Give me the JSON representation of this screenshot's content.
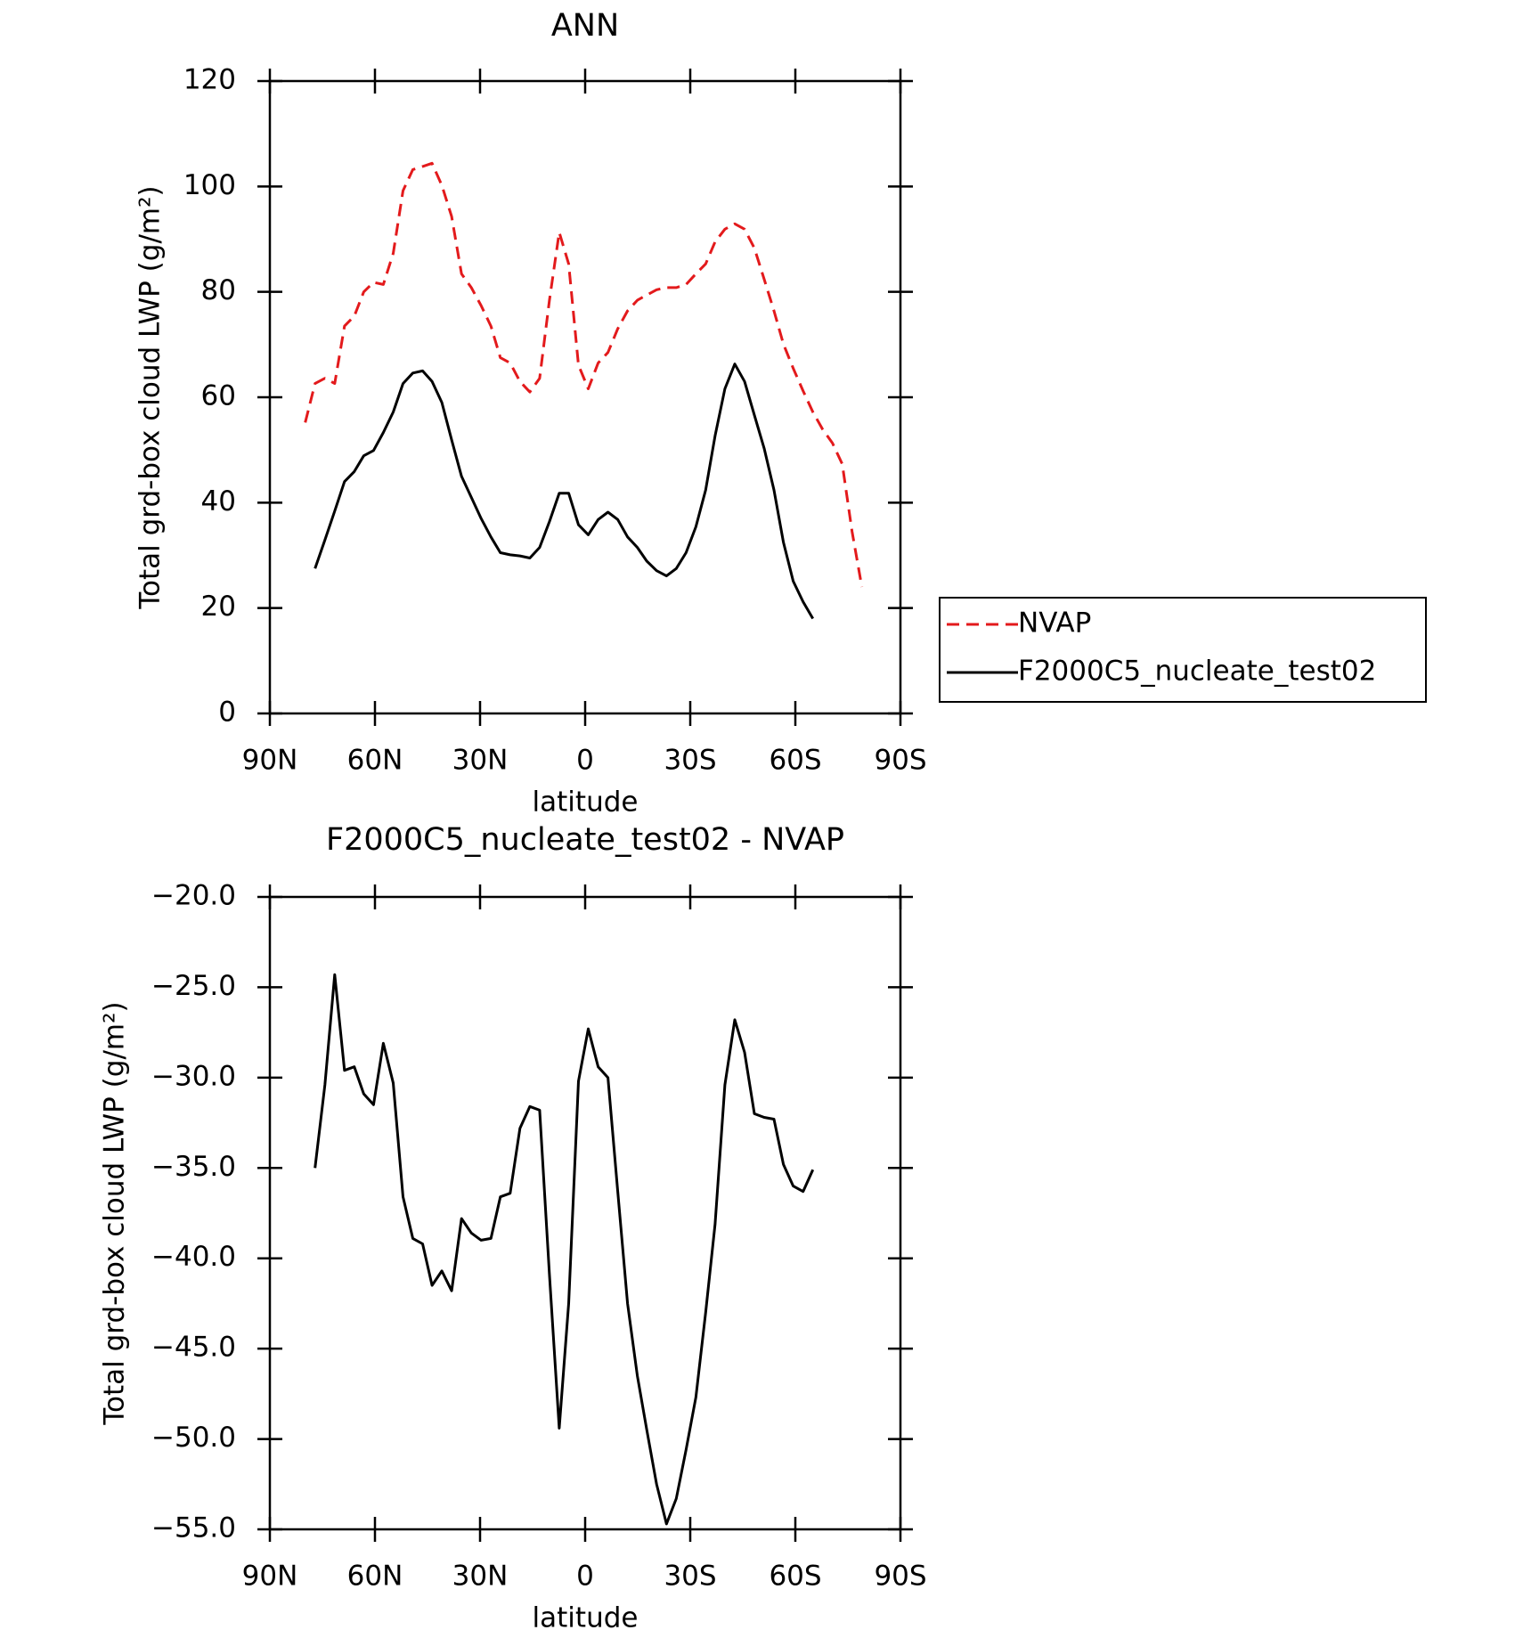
{
  "chart_data": [
    {
      "type": "line",
      "title": "ANN",
      "xlabel": "latitude",
      "ylabel": "Total grd-box cloud LWP (g/m²)",
      "x": [
        79.9,
        77.1,
        74.3,
        71.5,
        68.7,
        65.9,
        63.2,
        60.4,
        57.6,
        54.8,
        52.0,
        49.2,
        46.4,
        43.7,
        40.9,
        38.1,
        35.3,
        32.5,
        29.7,
        26.9,
        24.2,
        21.4,
        18.6,
        15.8,
        13.0,
        10.2,
        7.4,
        4.7,
        1.9,
        -0.9,
        -3.7,
        -6.5,
        -9.3,
        -12.1,
        -14.9,
        -17.6,
        -20.4,
        -23.2,
        -26.0,
        -28.8,
        -31.6,
        -34.4,
        -37.1,
        -39.9,
        -42.7,
        -45.5,
        -48.3,
        -51.1,
        -53.9,
        -56.6,
        -59.4,
        -62.2,
        -65.0,
        -67.8,
        -70.6,
        -73.4,
        -76.2,
        -79.0
      ],
      "series": [
        {
          "name": "NVAP",
          "color": "#e31a1c",
          "dashed": true,
          "values": [
            55.2,
            62.6,
            63.6,
            62.6,
            73.5,
            75.4,
            80,
            81.8,
            81.4,
            87.3,
            99.2,
            103.2,
            103.8,
            104.4,
            100.2,
            94.3,
            83.4,
            80.8,
            77.4,
            73.5,
            67.5,
            66.5,
            63,
            61,
            63.6,
            78.4,
            91.3,
            85.3,
            66.1,
            61.6,
            66.5,
            68.5,
            73,
            76.4,
            78.4,
            79.4,
            80.4,
            80.8,
            80.8,
            81.4,
            83.4,
            85.3,
            89.5,
            91.9,
            92.9,
            91.9,
            88.3,
            82.4,
            76.4,
            70.1,
            65.5,
            61.2,
            57.2,
            53.9,
            51.3,
            47.3,
            34.5,
            24
          ]
        },
        {
          "name": "F2000C5_nucleate_test02",
          "color": "#000000",
          "dashed": false,
          "values": [
            null,
            27.5,
            32.9,
            38.4,
            44,
            45.9,
            48.9,
            49.9,
            53.3,
            57.2,
            62.6,
            64.6,
            65,
            63,
            59,
            51.9,
            45,
            41,
            37,
            33.5,
            30.5,
            30.1,
            29.9,
            29.5,
            31.5,
            36.4,
            41.8,
            41.8,
            35.8,
            33.9,
            36.8,
            38.2,
            36.8,
            33.5,
            31.5,
            28.9,
            27.1,
            26.1,
            27.5,
            30.5,
            35.4,
            42.4,
            52.7,
            61.6,
            66.3,
            63,
            56.6,
            50.3,
            42.4,
            32.5,
            25.1,
            21.2,
            18,
            null,
            null,
            null,
            null,
            null
          ]
        }
      ],
      "xlim": [
        90,
        -90
      ],
      "xticks": [
        {
          "value": 90,
          "label": "90N"
        },
        {
          "value": 60,
          "label": "60N"
        },
        {
          "value": 30,
          "label": "30N"
        },
        0,
        {
          "value": -30,
          "label": "30S"
        },
        {
          "value": -60,
          "label": "60S"
        },
        {
          "value": -90,
          "label": "90S"
        }
      ],
      "ylim": [
        0,
        120
      ],
      "yticks": [
        0,
        20,
        40,
        60,
        80,
        100,
        120
      ],
      "legend": "right"
    },
    {
      "type": "line",
      "title": "F2000C5_nucleate_test02 - NVAP",
      "xlabel": "latitude",
      "ylabel": "Total grd-box cloud LWP (g/m²)",
      "x": [
        77.1,
        74.3,
        71.5,
        68.7,
        65.9,
        63.2,
        60.4,
        57.6,
        54.8,
        52.0,
        49.2,
        46.4,
        43.7,
        40.9,
        38.1,
        35.3,
        32.5,
        29.7,
        26.9,
        24.2,
        21.4,
        18.6,
        15.8,
        13.0,
        10.2,
        7.4,
        4.7,
        1.9,
        -0.9,
        -3.7,
        -6.5,
        -9.3,
        -12.1,
        -14.9,
        -17.6,
        -20.4,
        -23.2,
        -26.0,
        -28.8,
        -31.6,
        -34.4,
        -37.1,
        -39.9,
        -42.7,
        -45.5,
        -48.3,
        -51.1,
        -53.9,
        -56.6,
        -59.4,
        -62.2,
        -65.0
      ],
      "series": [
        {
          "color": "#000000",
          "dashed": false,
          "values": [
            -35.0,
            -30.4,
            -24.3,
            -29.6,
            -29.4,
            -30.9,
            -31.5,
            -28.1,
            -30.3,
            -36.6,
            -38.9,
            -39.2,
            -41.5,
            -40.7,
            -41.8,
            -37.8,
            -38.6,
            -39.0,
            -38.9,
            -36.6,
            -36.4,
            -32.8,
            -31.6,
            -31.8,
            -40.9,
            -49.4,
            -42.5,
            -30.2,
            -27.3,
            -29.4,
            -30.0,
            -36.3,
            -42.5,
            -46.5,
            -49.5,
            -52.5,
            -54.7,
            -53.3,
            -50.6,
            -47.7,
            -43.0,
            -38.1,
            -30.4,
            -26.8,
            -28.6,
            -32.0,
            -32.2,
            -32.3,
            -34.8,
            -36.0,
            -36.3,
            -35.1
          ]
        }
      ],
      "xlim": [
        90,
        -90
      ],
      "xticks": [
        {
          "value": 90,
          "label": "90N"
        },
        {
          "value": 60,
          "label": "60N"
        },
        {
          "value": 30,
          "label": "30N"
        },
        0,
        {
          "value": -30,
          "label": "30S"
        },
        {
          "value": -60,
          "label": "60S"
        },
        {
          "value": -90,
          "label": "90S"
        }
      ],
      "ylim": [
        -55,
        -20
      ],
      "yticks": [
        {
          "value": -55,
          "label": "−55.0"
        },
        {
          "value": -50,
          "label": "−50.0"
        },
        {
          "value": -45,
          "label": "−45.0"
        },
        {
          "value": -40,
          "label": "−40.0"
        },
        {
          "value": -35,
          "label": "−35.0"
        },
        {
          "value": -30,
          "label": "−30.0"
        },
        {
          "value": -25,
          "label": "−25.0"
        },
        {
          "value": -20,
          "label": "−20.0"
        }
      ]
    }
  ]
}
